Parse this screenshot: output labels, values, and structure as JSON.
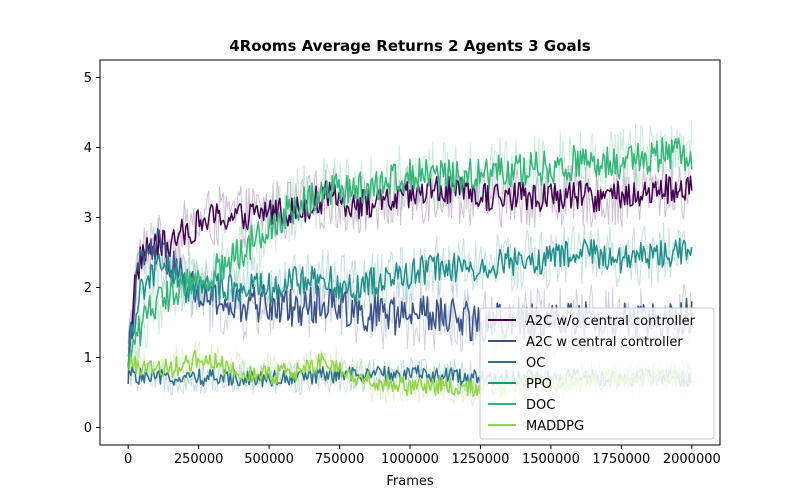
{
  "chart_data": {
    "type": "line",
    "title": "4Rooms Average Returns 2 Agents 3 Goals",
    "xlabel": "Frames",
    "ylabel": "",
    "xlim": [
      -100000,
      2100000
    ],
    "ylim": [
      -0.25,
      5.25
    ],
    "xticks": [
      0,
      250000,
      500000,
      750000,
      1000000,
      1250000,
      1500000,
      1750000,
      2000000
    ],
    "yticks": [
      0,
      1,
      2,
      3,
      4,
      5
    ],
    "grid": false,
    "legend_position": "lower-right",
    "series": [
      {
        "name": "A2C w/o central controller",
        "color": "#440154",
        "x": [
          0,
          25000,
          50000,
          100000,
          150000,
          200000,
          250000,
          300000,
          400000,
          500000,
          600000,
          700000,
          800000,
          900000,
          1000000,
          1100000,
          1250000,
          1400000,
          1500000,
          1600000,
          1750000,
          1900000,
          2000000
        ],
        "values": [
          1.0,
          2.1,
          2.5,
          2.6,
          2.6,
          2.8,
          2.9,
          3.0,
          3.0,
          3.1,
          3.1,
          3.3,
          3.2,
          3.2,
          3.3,
          3.4,
          3.3,
          3.3,
          3.3,
          3.3,
          3.3,
          3.4,
          3.4
        ]
      },
      {
        "name": "A2C w central controller",
        "color": "#3b528b",
        "x": [
          0,
          25000,
          50000,
          100000,
          150000,
          200000,
          250000,
          300000,
          400000,
          500000,
          600000,
          700000,
          800000,
          900000,
          1000000,
          1100000,
          1250000,
          1400000,
          1500000,
          1600000,
          1750000,
          1900000,
          2000000
        ],
        "values": [
          0.9,
          2.0,
          2.4,
          2.6,
          2.3,
          2.1,
          1.9,
          1.8,
          1.7,
          1.8,
          1.7,
          1.8,
          1.7,
          1.6,
          1.6,
          1.6,
          1.5,
          1.5,
          1.5,
          1.6,
          1.5,
          1.5,
          1.6
        ]
      },
      {
        "name": "OC",
        "color": "#2c728e",
        "x": [
          0,
          25000,
          50000,
          100000,
          150000,
          200000,
          250000,
          300000,
          400000,
          500000,
          600000,
          700000,
          800000,
          900000,
          1000000,
          1100000,
          1250000,
          1400000,
          1500000,
          1600000,
          1750000,
          1900000,
          2000000
        ],
        "values": [
          0.8,
          0.75,
          0.72,
          0.7,
          0.72,
          0.7,
          0.72,
          0.7,
          0.72,
          0.7,
          0.72,
          0.75,
          0.75,
          0.75,
          0.78,
          0.75,
          0.7,
          0.72,
          0.7,
          0.72,
          0.7,
          0.72,
          0.7
        ]
      },
      {
        "name": "PPO",
        "color": "#21908d",
        "x": [
          0,
          25000,
          50000,
          100000,
          150000,
          200000,
          250000,
          300000,
          400000,
          500000,
          600000,
          700000,
          800000,
          900000,
          1000000,
          1100000,
          1250000,
          1400000,
          1500000,
          1600000,
          1750000,
          1900000,
          2000000
        ],
        "values": [
          1.0,
          1.6,
          2.0,
          2.3,
          2.3,
          2.0,
          2.0,
          2.0,
          2.0,
          2.0,
          2.1,
          2.1,
          2.0,
          2.1,
          2.2,
          2.3,
          2.3,
          2.4,
          2.4,
          2.5,
          2.4,
          2.5,
          2.5
        ]
      },
      {
        "name": "DOC",
        "color": "#35b779",
        "x": [
          0,
          25000,
          50000,
          100000,
          150000,
          200000,
          250000,
          300000,
          400000,
          500000,
          600000,
          700000,
          800000,
          900000,
          1000000,
          1100000,
          1250000,
          1400000,
          1500000,
          1600000,
          1750000,
          1900000,
          2000000
        ],
        "values": [
          0.9,
          1.2,
          1.5,
          1.8,
          1.9,
          2.0,
          2.1,
          2.2,
          2.5,
          2.9,
          3.2,
          3.4,
          3.4,
          3.5,
          3.6,
          3.6,
          3.6,
          3.7,
          3.7,
          3.8,
          3.8,
          3.9,
          3.9
        ]
      },
      {
        "name": "MADDPG",
        "color": "#8fd744",
        "x": [
          0,
          25000,
          50000,
          100000,
          150000,
          200000,
          250000,
          300000,
          400000,
          500000,
          600000,
          700000,
          800000,
          900000,
          1000000,
          1100000,
          1250000,
          1400000,
          1500000,
          1600000,
          1750000,
          1900000,
          2000000
        ],
        "values": [
          0.9,
          0.9,
          0.88,
          0.85,
          0.85,
          0.9,
          1.0,
          0.95,
          0.8,
          0.75,
          0.8,
          0.95,
          0.7,
          0.65,
          0.6,
          0.6,
          0.55,
          0.6,
          0.65,
          0.65,
          0.7,
          0.72,
          0.75
        ]
      }
    ]
  }
}
